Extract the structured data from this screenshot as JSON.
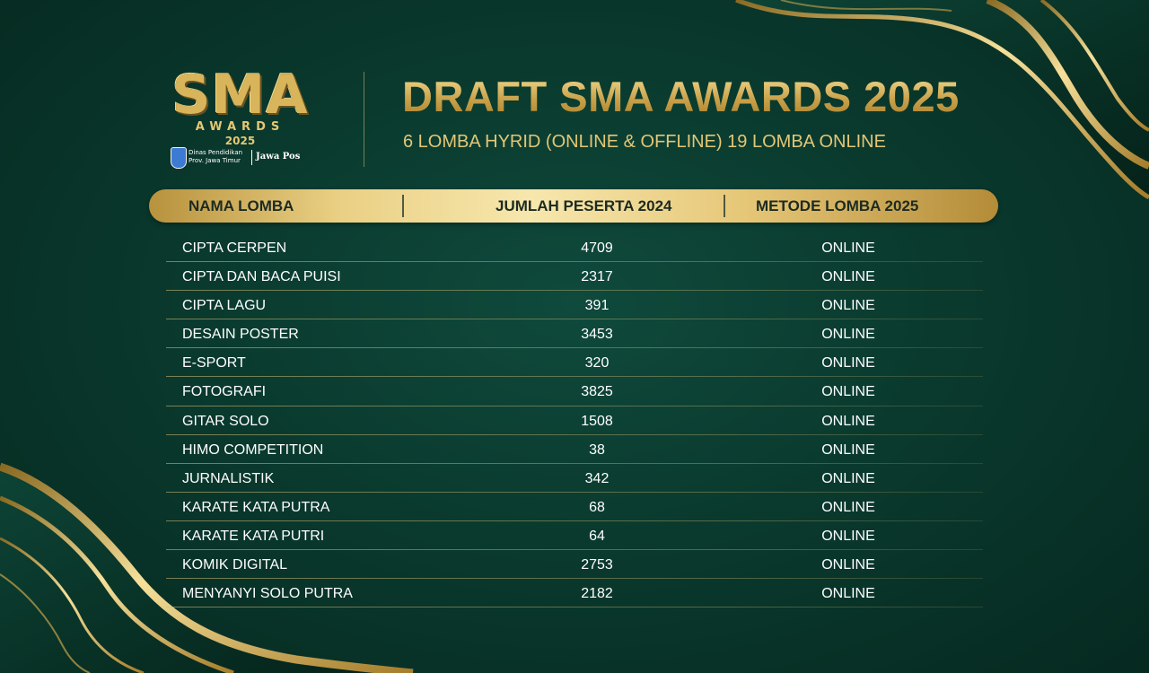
{
  "logo": {
    "title": "SMA",
    "subtitle": "AWARDS",
    "year": "2025",
    "org": "Dinas Pendidikan Prov. Jawa Timur",
    "partner": "Jawa Pos"
  },
  "header": {
    "title": "DRAFT SMA AWARDS 2025",
    "subtitle": "6 LOMBA HYRID (ONLINE & OFFLINE) 19 LOMBA ONLINE"
  },
  "table": {
    "columns": [
      "NAMA LOMBA",
      "JUMLAH PESERTA 2024",
      "METODE LOMBA 2025"
    ],
    "rows": [
      {
        "name": "CIPTA CERPEN",
        "count": "4709",
        "method": "ONLINE"
      },
      {
        "name": "CIPTA DAN BACA PUISI",
        "count": "2317",
        "method": "ONLINE"
      },
      {
        "name": "CIPTA LAGU",
        "count": "391",
        "method": "ONLINE"
      },
      {
        "name": "DESAIN POSTER",
        "count": "3453",
        "method": "ONLINE"
      },
      {
        "name": "E-SPORT",
        "count": "320",
        "method": "ONLINE"
      },
      {
        "name": "FOTOGRAFI",
        "count": "3825",
        "method": "ONLINE"
      },
      {
        "name": "GITAR SOLO",
        "count": "1508",
        "method": "ONLINE"
      },
      {
        "name": "HIMO COMPETITION",
        "count": "38",
        "method": "ONLINE"
      },
      {
        "name": "JURNALISTIK",
        "count": "342",
        "method": "ONLINE"
      },
      {
        "name": "KARATE KATA PUTRA",
        "count": "68",
        "method": "ONLINE"
      },
      {
        "name": "KARATE KATA PUTRI",
        "count": "64",
        "method": "ONLINE"
      },
      {
        "name": "KOMIK DIGITAL",
        "count": "2753",
        "method": "ONLINE"
      },
      {
        "name": "MENYANYI SOLO PUTRA",
        "count": "2182",
        "method": "ONLINE"
      }
    ]
  },
  "colors": {
    "background": "#0a3a2e",
    "gold": "#d8b45a",
    "header_bar": "#f0dc9a",
    "text": "#ffffff"
  }
}
